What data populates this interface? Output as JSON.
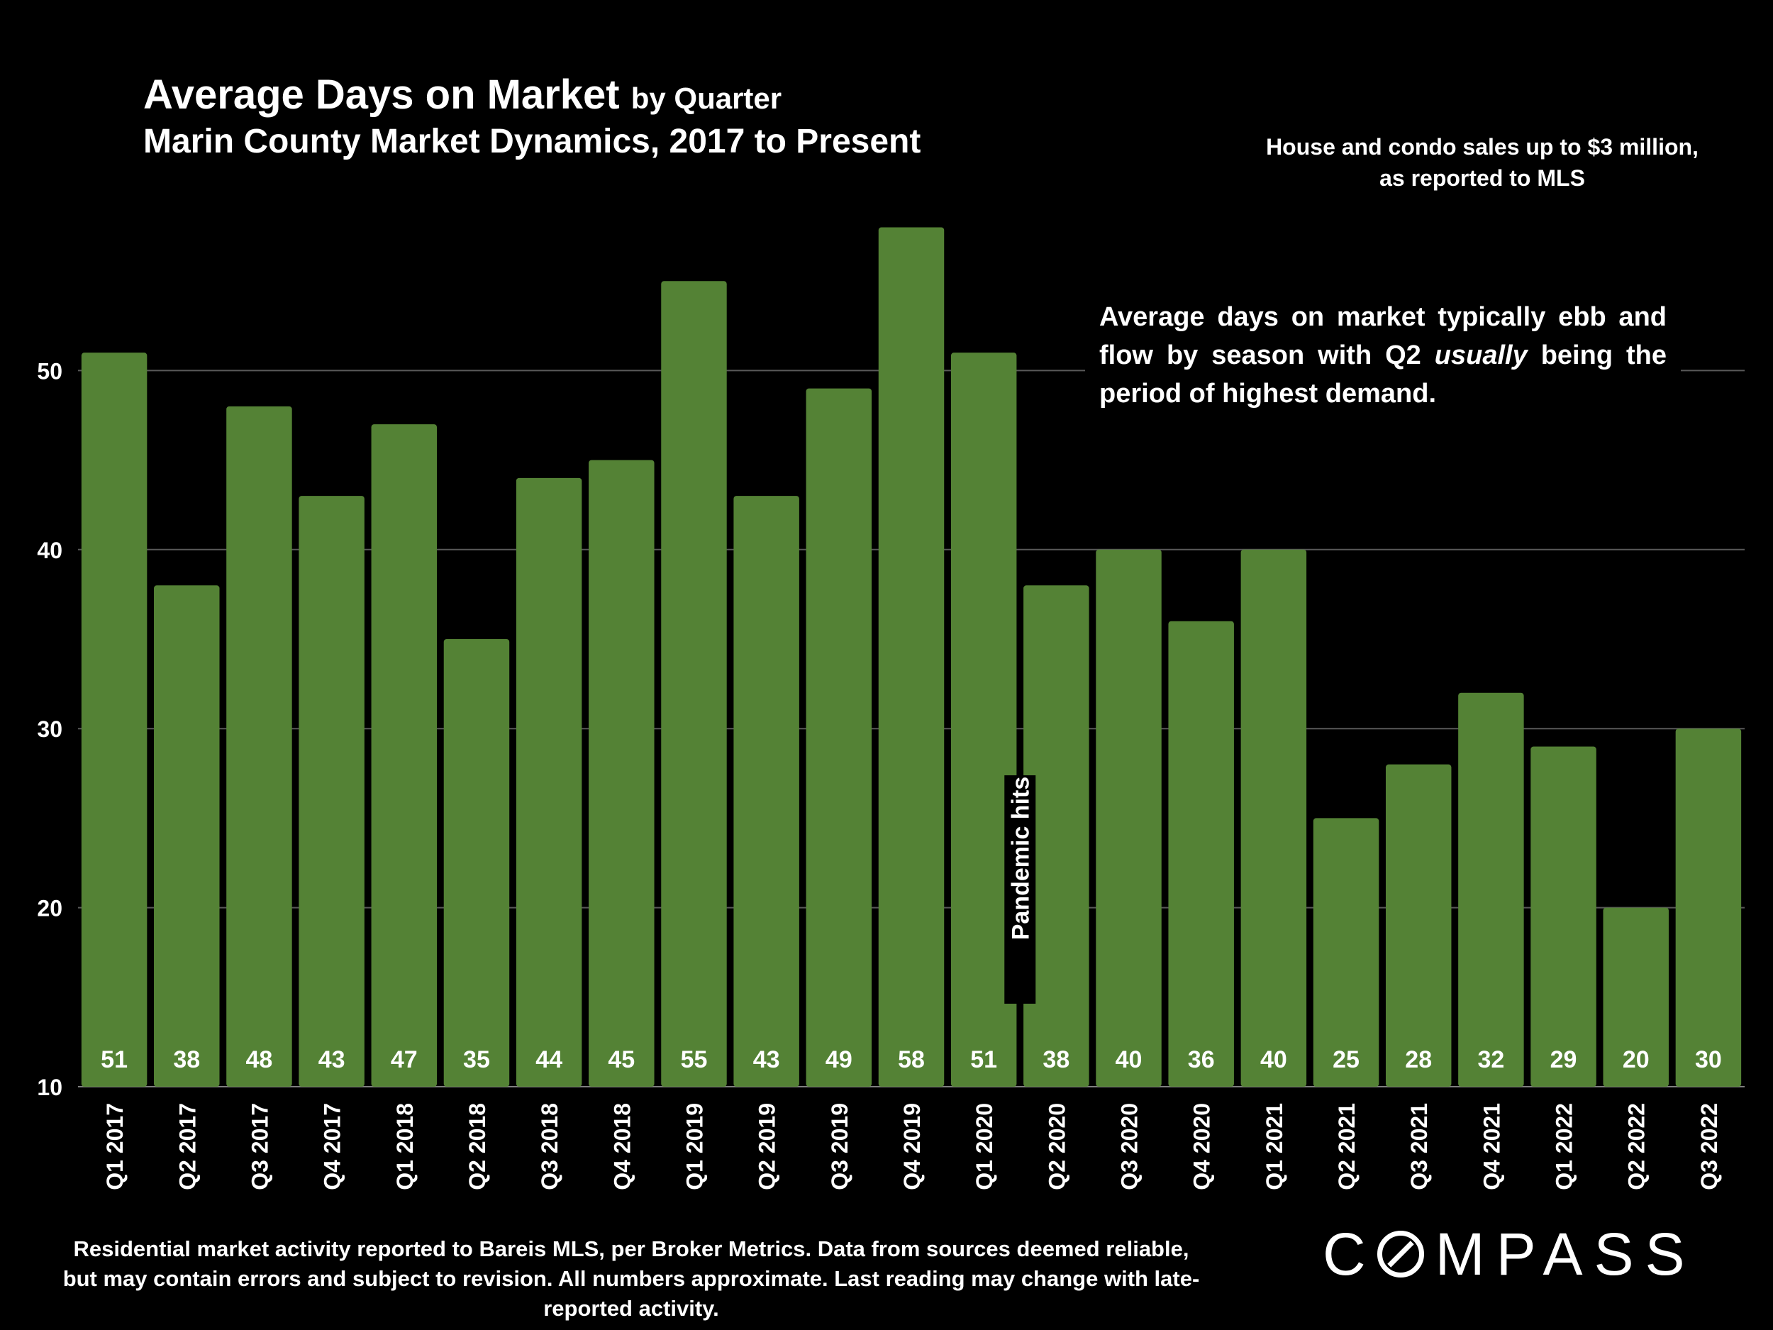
{
  "title": {
    "main": "Average Days on Market",
    "main_suffix": "by Quarter",
    "subtitle": "Marin County Market Dynamics, 2017 to Present"
  },
  "note_top": "House and condo sales up to $3 million, as reported to MLS",
  "callout": {
    "before": "Average days on market typically ebb and flow by season with Q2 ",
    "italic": "usually",
    "after": " being the period of highest demand."
  },
  "footnote": "Residential market activity reported to Bareis MLS, per Broker Metrics. Data from sources deemed reliable, but may contain errors and subject to revision. All numbers approximate. Last reading may change with late-reported activity.",
  "logo": {
    "pre": "C",
    "post": "MPASS"
  },
  "colors": {
    "bar": "#548235",
    "background": "#000000",
    "grid": "#595959",
    "text": "#ffffff"
  },
  "chart_data": {
    "type": "bar",
    "title": "Average Days on Market by Quarter",
    "xlabel": "",
    "ylabel": "",
    "ylim": [
      10,
      60
    ],
    "yticks": [
      10,
      20,
      30,
      40,
      50
    ],
    "grid": true,
    "categories": [
      "Q1 2017",
      "Q2 2017",
      "Q3 2017",
      "Q4 2017",
      "Q1 2018",
      "Q2 2018",
      "Q3 2018",
      "Q4 2018",
      "Q1 2019",
      "Q2 2019",
      "Q3 2019",
      "Q4 2019",
      "Q1 2020",
      "Q2 2020",
      "Q3 2020",
      "Q4 2020",
      "Q1 2021",
      "Q2 2021",
      "Q3 2021",
      "Q4 2021",
      "Q1 2022",
      "Q2 2022",
      "Q3 2022"
    ],
    "values": [
      51,
      38,
      48,
      43,
      47,
      35,
      44,
      45,
      55,
      43,
      49,
      58,
      51,
      38,
      40,
      36,
      40,
      25,
      28,
      32,
      29,
      20,
      30
    ],
    "annotations": [
      {
        "text": "Pandemic hits",
        "between": [
          "Q1 2020",
          "Q2 2020"
        ]
      }
    ]
  }
}
